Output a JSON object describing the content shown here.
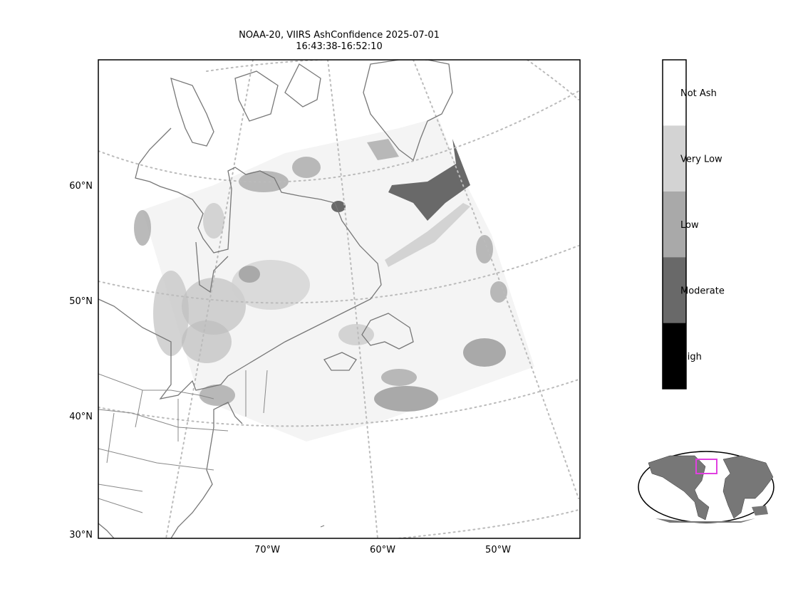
{
  "title": [
    "NOAA-20, VIIRS AshConfidence 2025-07-01",
    "16:43:38-16:52:10"
  ],
  "lat_labels": [
    "60°N",
    "50°N",
    "40°N",
    "30°N"
  ],
  "lon_labels": [
    "70°W",
    "60°W",
    "50°W"
  ],
  "colorbar": [
    {
      "label": "Not Ash",
      "color": "#ffffff"
    },
    {
      "label": "Very Low",
      "color": "#d3d3d3"
    },
    {
      "label": "Low",
      "color": "#a9a9a9"
    },
    {
      "label": "Moderate",
      "color": "#696969"
    },
    {
      "label": "High",
      "color": "#000000"
    }
  ]
}
